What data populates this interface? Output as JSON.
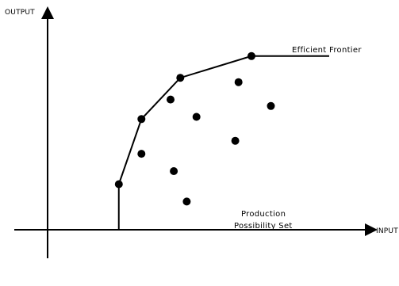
{
  "chart_data": {
    "type": "scatter",
    "title": "",
    "xlabel": "INPUT",
    "ylabel": "OUTPUT",
    "frontier_label": "Efficient Frontier",
    "set_label_line1": "Production",
    "set_label_line2": "Possibility Set",
    "xlim": [
      0,
      100
    ],
    "ylim": [
      0,
      100
    ],
    "grid": false,
    "frontier": [
      {
        "x": 22,
        "y": 21
      },
      {
        "x": 29,
        "y": 51
      },
      {
        "x": 41,
        "y": 70
      },
      {
        "x": 63,
        "y": 80
      },
      {
        "x": 87,
        "y": 80
      }
    ],
    "frontier_points": [
      {
        "x": 22,
        "y": 21
      },
      {
        "x": 29,
        "y": 51
      },
      {
        "x": 41,
        "y": 70
      },
      {
        "x": 63,
        "y": 80
      }
    ],
    "interior_points": [
      {
        "x": 29,
        "y": 35
      },
      {
        "x": 38,
        "y": 60
      },
      {
        "x": 39,
        "y": 27
      },
      {
        "x": 43,
        "y": 13
      },
      {
        "x": 46,
        "y": 52
      },
      {
        "x": 58,
        "y": 41
      },
      {
        "x": 59,
        "y": 68
      },
      {
        "x": 69,
        "y": 57
      }
    ],
    "colors": {
      "axes": "#000000",
      "marks": "#000000",
      "background": "#ffffff"
    }
  }
}
